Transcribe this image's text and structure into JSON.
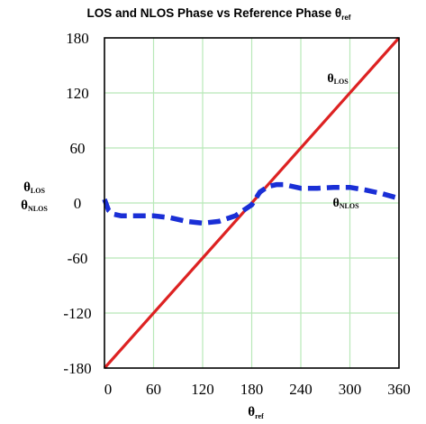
{
  "chart_data": {
    "type": "line",
    "title": {
      "main": "LOS and NLOS Phase vs Reference Phase θ",
      "sub": "ref"
    },
    "xlabel": {
      "main": "θ",
      "sub": "ref"
    },
    "ylabel": [
      {
        "main": "θ",
        "sub": "LOS"
      },
      {
        "main": "θ",
        "sub": "NLOS"
      }
    ],
    "xlim": [
      0,
      360
    ],
    "ylim": [
      -180,
      180
    ],
    "xticks": [
      0,
      60,
      120,
      180,
      240,
      300,
      360
    ],
    "yticks": [
      180,
      120,
      60,
      0,
      -60,
      -120,
      -180
    ],
    "grid": true,
    "colors": {
      "grid": "#b8e8b8",
      "los": "#dd2222",
      "nlos": "#1a2fd6"
    },
    "series": [
      {
        "name": {
          "main": "θ",
          "sub": "LOS"
        },
        "style": "solid",
        "x": [
          0,
          360
        ],
        "y": [
          -180,
          180
        ]
      },
      {
        "name": {
          "main": "θ",
          "sub": "NLOS"
        },
        "style": "dashed",
        "x": [
          0,
          5,
          10,
          20,
          40,
          60,
          80,
          100,
          120,
          140,
          160,
          170,
          180,
          190,
          200,
          210,
          220,
          240,
          260,
          280,
          300,
          320,
          340,
          360
        ],
        "y": [
          4,
          -8,
          -12,
          -14,
          -14,
          -14,
          -16,
          -20,
          -22,
          -20,
          -14,
          -8,
          -2,
          12,
          18,
          20,
          20,
          16,
          16,
          17,
          17,
          14,
          10,
          5
        ]
      }
    ]
  }
}
